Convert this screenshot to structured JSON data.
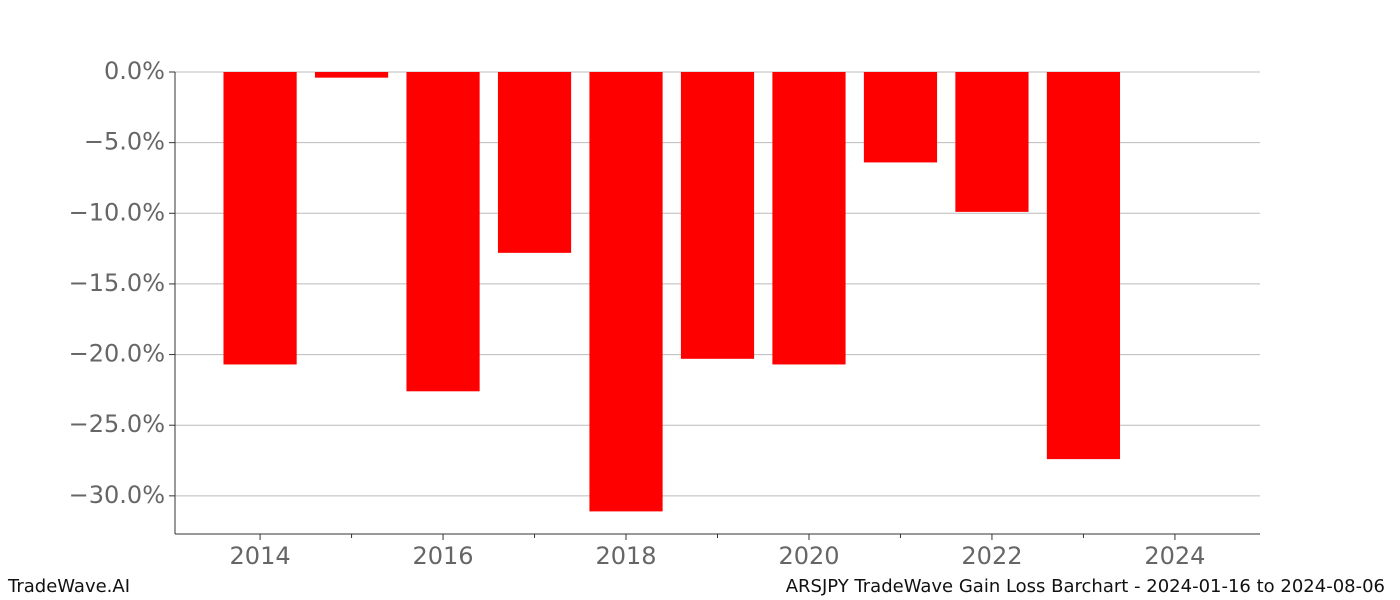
{
  "chart_data": {
    "type": "bar",
    "x": [
      2014,
      2015,
      2016,
      2017,
      2018,
      2019,
      2020,
      2021,
      2022,
      2023
    ],
    "values": [
      -20.7,
      -0.4,
      -22.6,
      -12.8,
      -31.1,
      -20.3,
      -20.7,
      -6.4,
      -9.9,
      -27.4
    ],
    "color": "#ff0000",
    "xlim": [
      2013.07,
      2024.93
    ],
    "xticks": [
      2014,
      2016,
      2018,
      2020,
      2022,
      2024
    ],
    "xminor_ticks": [
      2015,
      2017,
      2019,
      2021,
      2023
    ],
    "ylim": [
      -32.7,
      0
    ],
    "yticks": [
      {
        "value": 0,
        "label": "0.0%"
      },
      {
        "value": -5,
        "label": "−5.0%"
      },
      {
        "value": -10,
        "label": "−10.0%"
      },
      {
        "value": -15,
        "label": "−15.0%"
      },
      {
        "value": -20,
        "label": "−20.0%"
      },
      {
        "value": -25,
        "label": "−25.0%"
      },
      {
        "value": -30,
        "label": "−30.0%"
      }
    ],
    "grid": true,
    "footer_left": "TradeWave.AI",
    "footer_right": "ARSJPY TradeWave Gain Loss Barchart - 2024-01-16 to 2024-08-06"
  }
}
